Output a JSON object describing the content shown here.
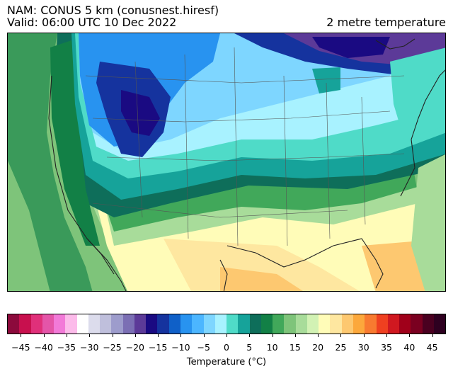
{
  "title": {
    "line1": "NAM: CONUS 5 km (conusnest.hiresf)",
    "line2": "Valid: 06:00 UTC 10 Dec 2022",
    "variable": "2 metre temperature"
  },
  "colorbar": {
    "label": "Temperature (°C)",
    "min": -48,
    "max": 48,
    "step": 2.5,
    "colors": [
      "#8c0a3c",
      "#c8104e",
      "#e0307a",
      "#e455a8",
      "#f27ad8",
      "#fcbbea",
      "#ffffff",
      "#dcdcec",
      "#bfbfdc",
      "#9d9ccc",
      "#7b6fb4",
      "#5c3a98",
      "#1a0a82",
      "#15339e",
      "#0f60c8",
      "#2893f0",
      "#4cb6ff",
      "#7ed6ff",
      "#a8f2ff",
      "#4fdbc8",
      "#16a39a",
      "#0e6e5a",
      "#128046",
      "#41a85a",
      "#7ec47a",
      "#a8dc9a",
      "#d2f2b4",
      "#fffcb8",
      "#fee7a0",
      "#fdc870",
      "#fca83c",
      "#f87a30",
      "#ef4020",
      "#d01820",
      "#a0001a",
      "#7a0020",
      "#4a0020",
      "#2e0020"
    ],
    "ticks": [
      "−45",
      "−40",
      "−35",
      "−30",
      "−25",
      "−20",
      "−15",
      "−10",
      "−5",
      "0",
      "5",
      "10",
      "15",
      "20",
      "25",
      "30",
      "35",
      "40",
      "45"
    ],
    "tick_values": [
      -45,
      -40,
      -35,
      -30,
      -25,
      -20,
      -15,
      -10,
      -5,
      0,
      5,
      10,
      15,
      20,
      25,
      30,
      35,
      40,
      45
    ]
  },
  "map": {
    "colors": {
      "pacific": "#3a9a5a",
      "pacific_near": "#7ec47a",
      "pacific_far": "#a8dc9a",
      "west_coast": "#128046",
      "west_dark": "#0e6e5a",
      "cold_core": "#1a0a82",
      "rockies": "#15339e",
      "plains_cold": "#2893f0",
      "plains_light": "#7ed6ff",
      "midwest": "#a8f2ff",
      "teal": "#4fdbc8",
      "teal_dark": "#16a39a",
      "canada_cold": "#5c3a98",
      "south_green": "#41a85a",
      "south_light": "#a8dc9a",
      "gulf_yellow": "#fffcb8",
      "gulf_warm": "#fee7a0",
      "warm_orange": "#fdc870",
      "atlantic_green": "#7ec47a",
      "border": "#555555",
      "coast": "#222222"
    }
  }
}
